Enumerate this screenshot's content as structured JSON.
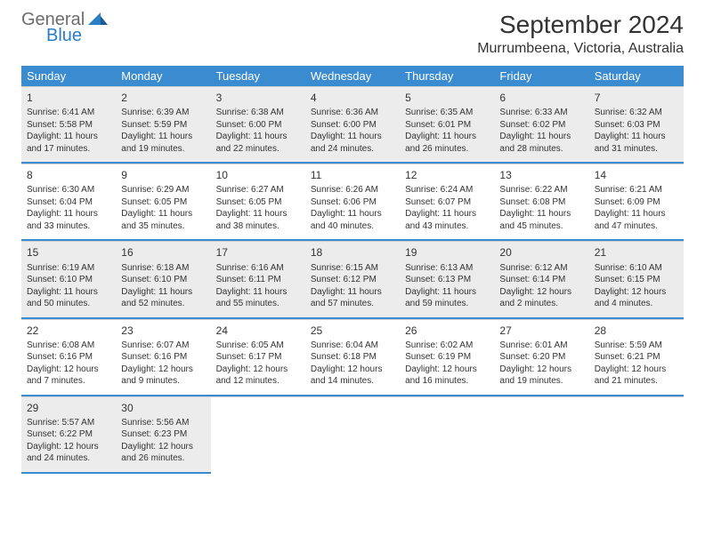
{
  "logo": {
    "word1": "General",
    "word2": "Blue"
  },
  "title": "September 2024",
  "location": "Murrumbeena, Victoria, Australia",
  "colors": {
    "header_bg": "#3b8bd1",
    "header_text": "#ffffff",
    "rule": "#3b8bd1",
    "shaded": "#ececec",
    "text": "#333333",
    "logo_gray": "#6c6c6c",
    "logo_blue": "#2b7dc4"
  },
  "day_names": [
    "Sunday",
    "Monday",
    "Tuesday",
    "Wednesday",
    "Thursday",
    "Friday",
    "Saturday"
  ],
  "weeks": [
    [
      {
        "day": 1,
        "sunrise": "6:41 AM",
        "sunset": "5:58 PM",
        "daylight": "11 hours and 17 minutes."
      },
      {
        "day": 2,
        "sunrise": "6:39 AM",
        "sunset": "5:59 PM",
        "daylight": "11 hours and 19 minutes."
      },
      {
        "day": 3,
        "sunrise": "6:38 AM",
        "sunset": "6:00 PM",
        "daylight": "11 hours and 22 minutes."
      },
      {
        "day": 4,
        "sunrise": "6:36 AM",
        "sunset": "6:00 PM",
        "daylight": "11 hours and 24 minutes."
      },
      {
        "day": 5,
        "sunrise": "6:35 AM",
        "sunset": "6:01 PM",
        "daylight": "11 hours and 26 minutes."
      },
      {
        "day": 6,
        "sunrise": "6:33 AM",
        "sunset": "6:02 PM",
        "daylight": "11 hours and 28 minutes."
      },
      {
        "day": 7,
        "sunrise": "6:32 AM",
        "sunset": "6:03 PM",
        "daylight": "11 hours and 31 minutes."
      }
    ],
    [
      {
        "day": 8,
        "sunrise": "6:30 AM",
        "sunset": "6:04 PM",
        "daylight": "11 hours and 33 minutes."
      },
      {
        "day": 9,
        "sunrise": "6:29 AM",
        "sunset": "6:05 PM",
        "daylight": "11 hours and 35 minutes."
      },
      {
        "day": 10,
        "sunrise": "6:27 AM",
        "sunset": "6:05 PM",
        "daylight": "11 hours and 38 minutes."
      },
      {
        "day": 11,
        "sunrise": "6:26 AM",
        "sunset": "6:06 PM",
        "daylight": "11 hours and 40 minutes."
      },
      {
        "day": 12,
        "sunrise": "6:24 AM",
        "sunset": "6:07 PM",
        "daylight": "11 hours and 43 minutes."
      },
      {
        "day": 13,
        "sunrise": "6:22 AM",
        "sunset": "6:08 PM",
        "daylight": "11 hours and 45 minutes."
      },
      {
        "day": 14,
        "sunrise": "6:21 AM",
        "sunset": "6:09 PM",
        "daylight": "11 hours and 47 minutes."
      }
    ],
    [
      {
        "day": 15,
        "sunrise": "6:19 AM",
        "sunset": "6:10 PM",
        "daylight": "11 hours and 50 minutes."
      },
      {
        "day": 16,
        "sunrise": "6:18 AM",
        "sunset": "6:10 PM",
        "daylight": "11 hours and 52 minutes."
      },
      {
        "day": 17,
        "sunrise": "6:16 AM",
        "sunset": "6:11 PM",
        "daylight": "11 hours and 55 minutes."
      },
      {
        "day": 18,
        "sunrise": "6:15 AM",
        "sunset": "6:12 PM",
        "daylight": "11 hours and 57 minutes."
      },
      {
        "day": 19,
        "sunrise": "6:13 AM",
        "sunset": "6:13 PM",
        "daylight": "11 hours and 59 minutes."
      },
      {
        "day": 20,
        "sunrise": "6:12 AM",
        "sunset": "6:14 PM",
        "daylight": "12 hours and 2 minutes."
      },
      {
        "day": 21,
        "sunrise": "6:10 AM",
        "sunset": "6:15 PM",
        "daylight": "12 hours and 4 minutes."
      }
    ],
    [
      {
        "day": 22,
        "sunrise": "6:08 AM",
        "sunset": "6:16 PM",
        "daylight": "12 hours and 7 minutes."
      },
      {
        "day": 23,
        "sunrise": "6:07 AM",
        "sunset": "6:16 PM",
        "daylight": "12 hours and 9 minutes."
      },
      {
        "day": 24,
        "sunrise": "6:05 AM",
        "sunset": "6:17 PM",
        "daylight": "12 hours and 12 minutes."
      },
      {
        "day": 25,
        "sunrise": "6:04 AM",
        "sunset": "6:18 PM",
        "daylight": "12 hours and 14 minutes."
      },
      {
        "day": 26,
        "sunrise": "6:02 AM",
        "sunset": "6:19 PM",
        "daylight": "12 hours and 16 minutes."
      },
      {
        "day": 27,
        "sunrise": "6:01 AM",
        "sunset": "6:20 PM",
        "daylight": "12 hours and 19 minutes."
      },
      {
        "day": 28,
        "sunrise": "5:59 AM",
        "sunset": "6:21 PM",
        "daylight": "12 hours and 21 minutes."
      }
    ],
    [
      {
        "day": 29,
        "sunrise": "5:57 AM",
        "sunset": "6:22 PM",
        "daylight": "12 hours and 24 minutes."
      },
      {
        "day": 30,
        "sunrise": "5:56 AM",
        "sunset": "6:23 PM",
        "daylight": "12 hours and 26 minutes."
      },
      null,
      null,
      null,
      null,
      null
    ]
  ],
  "labels": {
    "sunrise": "Sunrise:",
    "sunset": "Sunset:",
    "daylight": "Daylight:"
  }
}
